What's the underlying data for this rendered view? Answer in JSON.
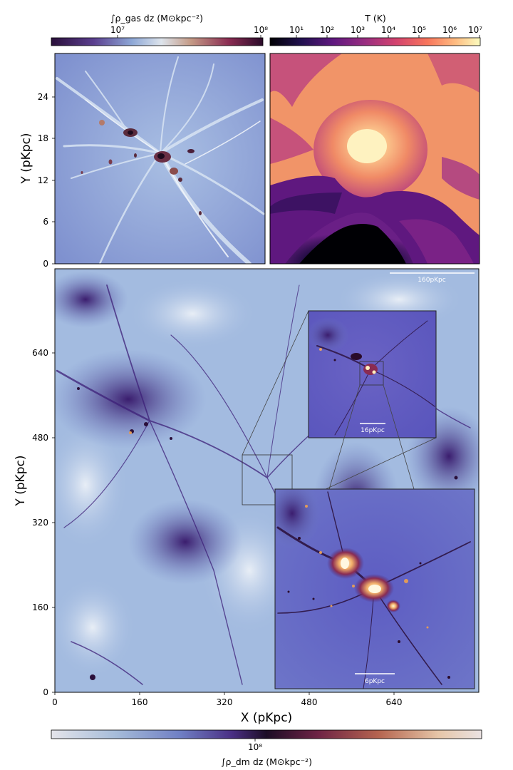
{
  "colorbars": {
    "gas": {
      "label": "∫ρ_gas dz (M⊙kpc⁻²)",
      "tick_labels": [
        "10⁷",
        "10⁸"
      ],
      "colors": [
        "#2a0f3a",
        "#5b3f8f",
        "#8da7d6",
        "#dde4ec",
        "#c49a86",
        "#8a2c52",
        "#2a0b2a"
      ]
    },
    "temperature": {
      "label": "T (K)",
      "tick_labels": [
        "10¹",
        "10²",
        "10³",
        "10⁴",
        "10⁵",
        "10⁶",
        "10⁷"
      ],
      "colors": [
        "#000004",
        "#221150",
        "#5f187f",
        "#982d80",
        "#d3436e",
        "#f8765c",
        "#febb81",
        "#fcfdbf"
      ]
    },
    "dm": {
      "label": "∫ρ_dm dz (M⊙kpc⁻²)",
      "tick_labels": [
        "10⁸"
      ],
      "colors": [
        "#e4e4ea",
        "#a6bcd9",
        "#6f7fc4",
        "#4a2f84",
        "#1c0d26",
        "#6e2345",
        "#b5644f",
        "#e6c6a8",
        "#eae2e2"
      ]
    }
  },
  "panels": {
    "gas_density": {
      "ylabel": "Y (pKpc)",
      "yticks": [
        "0",
        "6",
        "12",
        "18",
        "24"
      ]
    },
    "temperature": {},
    "dm_main": {
      "xlabel": "X (pKpc)",
      "ylabel": "Y (pKpc)",
      "xticks": [
        "0",
        "160",
        "320",
        "480",
        "640"
      ],
      "yticks": [
        "0",
        "160",
        "320",
        "480",
        "640"
      ],
      "scalebar": "160pKpc"
    },
    "inset1": {
      "scalebar": "16pKpc"
    },
    "inset2": {
      "scalebar": "6pKpc"
    }
  }
}
